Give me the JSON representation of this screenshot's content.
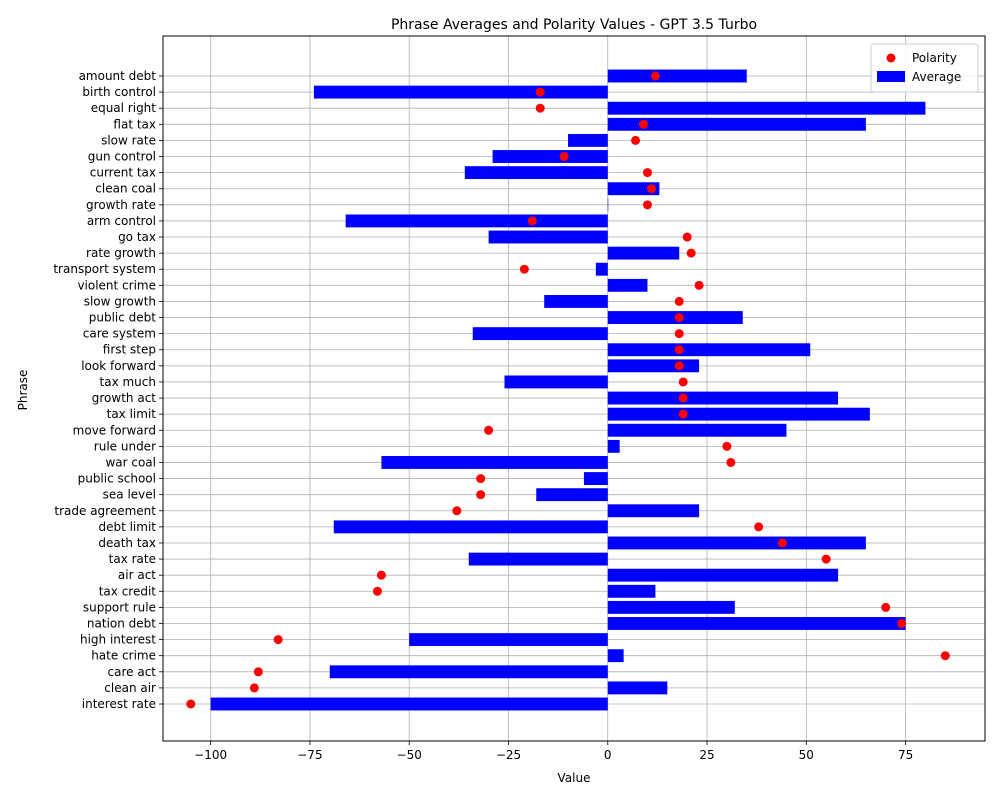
{
  "chart_data": {
    "type": "bar",
    "orientation": "horizontal",
    "title": "Phrase Averages and Polarity Values - GPT 3.5 Turbo",
    "xlabel": "Value",
    "ylabel": "Phrase",
    "xlim": [
      -112,
      95
    ],
    "xticks": [
      -100,
      -75,
      -50,
      -25,
      0,
      25,
      50,
      75
    ],
    "grid": true,
    "legend_position": "top-right",
    "categories": [
      "amount debt",
      "birth control",
      "equal right",
      "flat tax",
      "slow rate",
      "gun control",
      "current tax",
      "clean coal",
      "growth rate",
      "arm control",
      "go tax",
      "rate growth",
      "transport system",
      "violent crime",
      "slow growth",
      "public debt",
      "care system",
      "first step",
      "look forward",
      "tax much",
      "growth act",
      "tax limit",
      "move forward",
      "rule under",
      "war coal",
      "public school",
      "sea level",
      "trade agreement",
      "debt limit",
      "death tax",
      "tax rate",
      "air act",
      "tax credit",
      "support rule",
      "nation debt",
      "high interest",
      "hate crime",
      "care act",
      "clean air",
      "interest rate"
    ],
    "series": [
      {
        "name": "Average",
        "kind": "bar",
        "color": "#0000ff",
        "values": [
          35,
          -74,
          80,
          65,
          -10,
          -29,
          -36,
          13,
          0,
          -66,
          -30,
          18,
          -3,
          10,
          -16,
          34,
          -34,
          51,
          23,
          -26,
          58,
          66,
          45,
          3,
          -57,
          -6,
          -18,
          23,
          -69,
          65,
          -35,
          58,
          12,
          32,
          75,
          -50,
          4,
          -70,
          15,
          -100
        ]
      },
      {
        "name": "Polarity",
        "kind": "scatter",
        "color": "#ff0000",
        "values": [
          12,
          -17,
          -17,
          9,
          7,
          -11,
          10,
          11,
          10,
          -19,
          20,
          21,
          -21,
          23,
          18,
          18,
          18,
          18,
          18,
          19,
          19,
          19,
          -30,
          30,
          31,
          -32,
          -32,
          -38,
          38,
          44,
          55,
          -57,
          -58,
          70,
          74,
          -83,
          85,
          -88,
          -89,
          -105
        ]
      }
    ]
  }
}
